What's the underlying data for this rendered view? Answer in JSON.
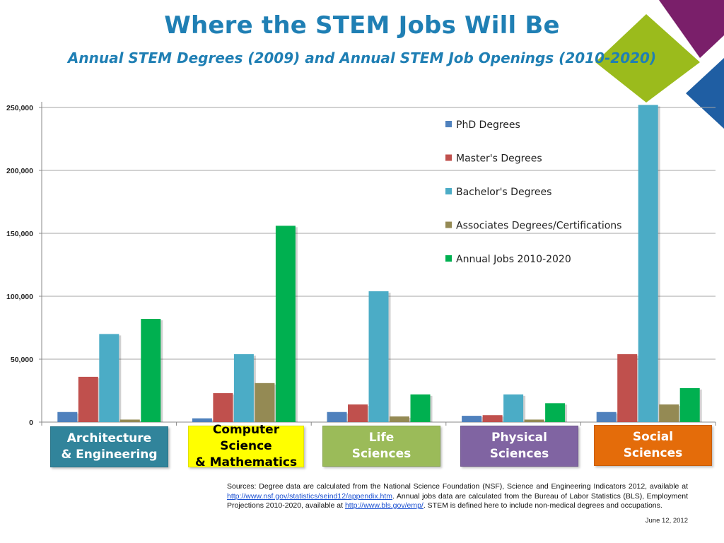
{
  "title": "Where the STEM Jobs Will Be",
  "subtitle": "Annual STEM Degrees (2009) and Annual STEM Job Openings (2010-2020)",
  "colors": {
    "title": "#1f7fb4",
    "phd": "#4f81bd",
    "masters": "#c0504d",
    "bachelors": "#4bacc6",
    "associates": "#948a54",
    "jobs": "#00b050",
    "corner_purple": "#7a1f6a",
    "corner_green": "#9bbb1c",
    "corner_blue": "#1f5ea3"
  },
  "chart_data": {
    "type": "bar",
    "title": "",
    "xlabel": "",
    "ylabel": "",
    "ylim": [
      0,
      250000
    ],
    "yticks": [
      0,
      50000,
      100000,
      150000,
      200000,
      250000
    ],
    "ytick_labels": [
      "0",
      "50,000",
      "100,000",
      "150,000",
      "200,000",
      "250,000"
    ],
    "grid": true,
    "legend_position": "top-right",
    "categories": [
      "Architecture\n& Engineering",
      "Computer Science\n& Mathematics",
      "Life\nSciences",
      "Physical\nSciences",
      "Social\nSciences"
    ],
    "category_colors": [
      "#31849b",
      "#ffff00",
      "#9bbb59",
      "#8064a2",
      "#e46c0a"
    ],
    "category_text_colors": [
      "#ffffff",
      "#000000",
      "#ffffff",
      "#ffffff",
      "#ffffff"
    ],
    "series": [
      {
        "name": "PhD Degrees",
        "color": "#4f81bd",
        "values": [
          8000,
          3000,
          8000,
          5000,
          8000
        ]
      },
      {
        "name": "Master's Degrees",
        "color": "#c0504d",
        "values": [
          36000,
          23000,
          14000,
          5500,
          54000
        ]
      },
      {
        "name": "Bachelor's Degrees",
        "color": "#4bacc6",
        "values": [
          70000,
          54000,
          104000,
          22000,
          252000
        ]
      },
      {
        "name": "Associates Degrees/Certifications",
        "color": "#948a54",
        "values": [
          2000,
          31000,
          4500,
          2000,
          14000
        ]
      },
      {
        "name": "Annual Jobs 2010-2020",
        "color": "#00b050",
        "values": [
          82000,
          156000,
          22000,
          15000,
          27000
        ]
      }
    ]
  },
  "sources": {
    "part1": "Sources: Degree data are calculated from the National Science Foundation (NSF), Science and Engineering Indicators 2012, available at ",
    "link1": "http://www.nsf.gov/statistics/seind12/appendix.htm",
    "part2": ". Annual jobs data are calculated from the Bureau of Labor Statistics (BLS), Employment Projections 2010-2020, available at ",
    "link2": "http://www.bls.gov/emp/",
    "part3": ". STEM is defined here to include non-medical degrees and occupations."
  },
  "date": "June 12, 2012"
}
